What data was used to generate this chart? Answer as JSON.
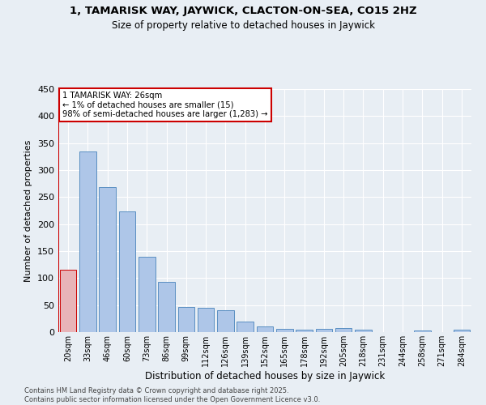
{
  "title": "1, TAMARISK WAY, JAYWICK, CLACTON-ON-SEA, CO15 2HZ",
  "subtitle": "Size of property relative to detached houses in Jaywick",
  "xlabel": "Distribution of detached houses by size in Jaywick",
  "ylabel": "Number of detached properties",
  "categories": [
    "20sqm",
    "33sqm",
    "46sqm",
    "60sqm",
    "73sqm",
    "86sqm",
    "99sqm",
    "112sqm",
    "126sqm",
    "139sqm",
    "152sqm",
    "165sqm",
    "178sqm",
    "192sqm",
    "205sqm",
    "218sqm",
    "231sqm",
    "244sqm",
    "258sqm",
    "271sqm",
    "284sqm"
  ],
  "values": [
    115,
    335,
    268,
    223,
    140,
    93,
    46,
    45,
    41,
    19,
    11,
    6,
    5,
    6,
    8,
    4,
    0,
    0,
    3,
    0,
    4
  ],
  "bar_color": "#aec6e8",
  "bar_edge_color": "#5a8fc2",
  "highlight_bar_index": 0,
  "highlight_color": "#e8b4b8",
  "highlight_edge_color": "#cc0000",
  "annotation_text": "1 TAMARISK WAY: 26sqm\n← 1% of detached houses are smaller (15)\n98% of semi-detached houses are larger (1,283) →",
  "annotation_box_color": "#ffffff",
  "annotation_box_edge_color": "#cc0000",
  "ylim": [
    0,
    450
  ],
  "yticks": [
    0,
    50,
    100,
    150,
    200,
    250,
    300,
    350,
    400,
    450
  ],
  "background_color": "#e8eef4",
  "grid_color": "#ffffff",
  "footer_line1": "Contains HM Land Registry data © Crown copyright and database right 2025.",
  "footer_line2": "Contains public sector information licensed under the Open Government Licence v3.0."
}
